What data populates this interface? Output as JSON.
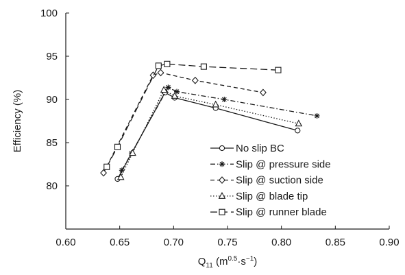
{
  "chart_data": {
    "type": "line",
    "ylabel": "Efficiency (%)",
    "xlabel": {
      "base": "Q",
      "sub": "11",
      "unit_open": " (m",
      "sup1": "0.5",
      "unit_mid": "·s",
      "sup2": "−1",
      "unit_close": ")"
    },
    "xlim": [
      0.6,
      0.9
    ],
    "ylim": [
      75,
      100
    ],
    "xticks": [
      "0.60",
      "0.65",
      "0.70",
      "0.75",
      "0.80",
      "0.85",
      "0.90"
    ],
    "yticks": [
      "80",
      "85",
      "90",
      "95",
      "100"
    ],
    "grid": false,
    "legend_position": "bottom-right",
    "series": [
      {
        "name": "No slip BC",
        "marker": "circle",
        "dash": "solid",
        "x": [
          0.648,
          0.692,
          0.701,
          0.739,
          0.815
        ],
        "y": [
          80.8,
          90.8,
          90.2,
          89.0,
          86.4
        ]
      },
      {
        "name": "Slip @ pressure side",
        "marker": "asterisk",
        "dash": "dashdot",
        "x": [
          0.652,
          0.661,
          0.695,
          0.703,
          0.747,
          0.833
        ],
        "y": [
          81.8,
          83.8,
          91.4,
          90.9,
          90.0,
          88.1
        ]
      },
      {
        "name": "Slip @ suction side",
        "marker": "diamond",
        "dash": "dashed",
        "x": [
          0.635,
          0.681,
          0.688,
          0.72,
          0.783
        ],
        "y": [
          81.5,
          92.8,
          93.1,
          92.2,
          90.8
        ]
      },
      {
        "name": "Slip @ blade tip",
        "marker": "triangle",
        "dash": "dotted",
        "x": [
          0.651,
          0.662,
          0.691,
          0.701,
          0.739,
          0.816
        ],
        "y": [
          81.0,
          83.8,
          91.1,
          90.4,
          89.4,
          87.2
        ]
      },
      {
        "name": "Slip @ runner blade",
        "marker": "square",
        "dash": "longdash",
        "x": [
          0.638,
          0.648,
          0.686,
          0.694,
          0.728,
          0.797
        ],
        "y": [
          82.2,
          84.5,
          93.9,
          94.1,
          93.8,
          93.4
        ]
      }
    ]
  }
}
